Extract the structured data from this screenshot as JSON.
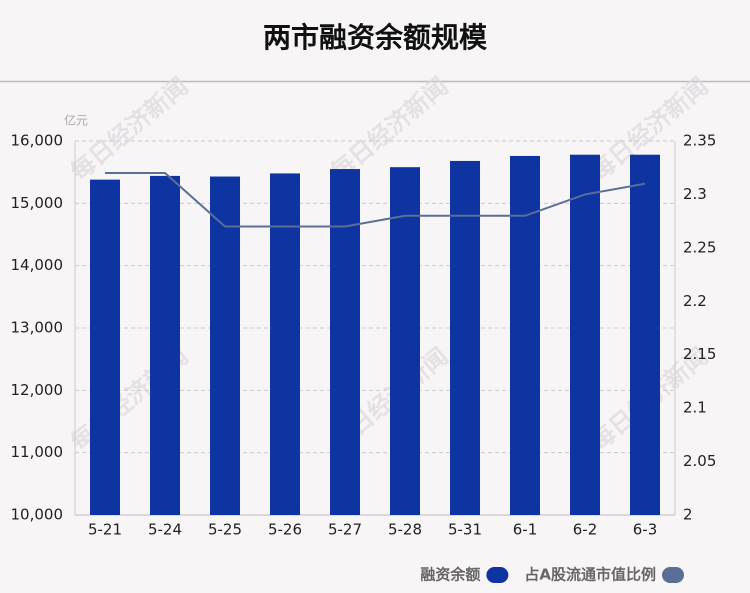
{
  "chart_data": {
    "type": "bar",
    "title": "两市融资余额规模",
    "unit": "亿元",
    "watermark": "每日经济新闻",
    "categories": [
      "5-21",
      "5-24",
      "5-25",
      "5-26",
      "5-27",
      "5-28",
      "5-31",
      "6-1",
      "6-2",
      "6-3"
    ],
    "series": [
      {
        "name": "融资余额",
        "type": "bar",
        "color": "#0d34a0",
        "values": [
          15380,
          15440,
          15430,
          15480,
          15550,
          15580,
          15680,
          15760,
          15780,
          15780
        ]
      },
      {
        "name": "占A股流通市值比例",
        "type": "line",
        "axis": "y2",
        "color": "#5b6e96",
        "values": [
          2.32,
          2.32,
          2.27,
          2.27,
          2.27,
          2.28,
          2.28,
          2.28,
          2.3,
          2.31
        ]
      }
    ],
    "ylim": [
      10000,
      16000
    ],
    "yticks": [
      {
        "value": 10000,
        "label": "10,000"
      },
      {
        "value": 11000,
        "label": "11,000"
      },
      {
        "value": 12000,
        "label": "12,000"
      },
      {
        "value": 13000,
        "label": "13,000"
      },
      {
        "value": 14000,
        "label": "14,000"
      },
      {
        "value": 15000,
        "label": "15,000"
      },
      {
        "value": 16000,
        "label": "16,000"
      }
    ],
    "y2lim": [
      2,
      2.35
    ],
    "y2ticks": [
      2,
      2.05,
      2.1,
      2.15,
      2.2,
      2.25,
      2.3,
      2.35
    ],
    "grid": true,
    "legend": "bottom-right"
  }
}
